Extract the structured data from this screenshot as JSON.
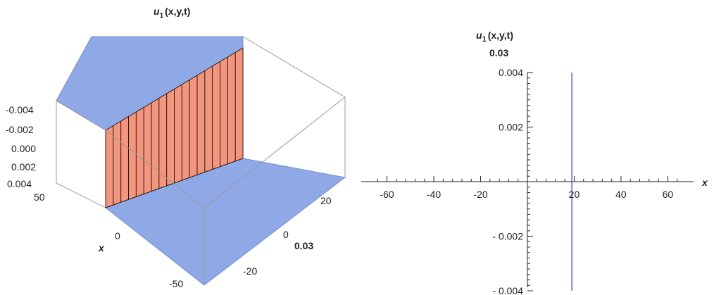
{
  "surface_plot": {
    "title_func": "u",
    "title_sub": "1",
    "title_args": "(x,y,t)",
    "z_ticks": [
      "-0.004",
      "-0.002",
      "0.000",
      "0.002",
      "0.004"
    ],
    "x_ticks": [
      "50",
      "0",
      "-50"
    ],
    "y_ticks": [
      "20",
      "0",
      "-20"
    ],
    "x_label": "x",
    "t_value": "0.03",
    "colors": {
      "plane": "#8fa9e6",
      "plane_edge": "#7390cf",
      "wall": "#f4957e",
      "wall_line": "#2a1a10",
      "box": "#9a9a9a"
    }
  },
  "chart_data": {
    "type": "line",
    "title": "u₁(x,y,t)",
    "subtitle": "0.03",
    "xlabel": "x",
    "xlim": [
      -65,
      65
    ],
    "ylim": [
      -0.004,
      0.004
    ],
    "x_ticks": [
      -60,
      -40,
      -20,
      20,
      40,
      60
    ],
    "x_tick_labels": [
      "-60",
      "-40",
      "-20",
      "20",
      "40",
      "60"
    ],
    "y_ticks": [
      0.004,
      0.002,
      -0.002,
      -0.004
    ],
    "y_tick_labels": [
      "0.004",
      "0.002",
      "- 0.002",
      "- 0.004"
    ],
    "series": [
      {
        "x": [
          19,
          19
        ],
        "y": [
          -0.004,
          0.004
        ],
        "color": "#3a3aa8"
      }
    ]
  },
  "right_title": {
    "func": "u",
    "sub": "1",
    "args": "(x,y,t)",
    "value": "0.03"
  }
}
